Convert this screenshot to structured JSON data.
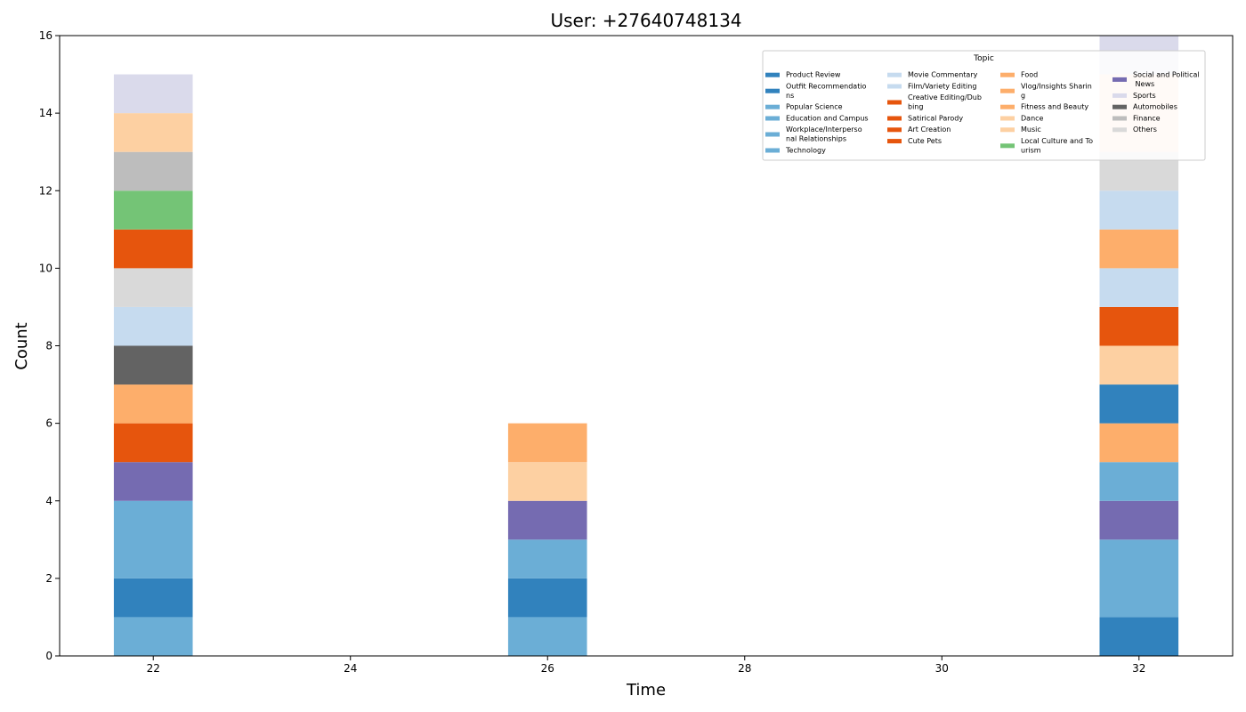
{
  "chart_data": {
    "type": "bar",
    "stacked": true,
    "title": "User: +27640748134",
    "xlabel": "Time",
    "ylabel": "Count",
    "xlim": [
      21.05,
      32.95
    ],
    "ylim": [
      0,
      16
    ],
    "x_ticks": [
      22,
      24,
      26,
      28,
      30,
      32
    ],
    "y_ticks": [
      0,
      2,
      4,
      6,
      8,
      10,
      12,
      14,
      16
    ],
    "bar_width": 0.8,
    "grid": false,
    "legend": {
      "title": "Topic",
      "placement": "top-right",
      "columns": 4,
      "entries": [
        {
          "label": "Product Review",
          "color": "#3182bd"
        },
        {
          "label": "Outfit Recommendatio\nns",
          "color": "#3182bd"
        },
        {
          "label": "Popular Science",
          "color": "#6baed6"
        },
        {
          "label": "Education and Campus",
          "color": "#6baed6"
        },
        {
          "label": "Workplace/Interperso\nnal Relationships",
          "color": "#6baed6"
        },
        {
          "label": "Technology",
          "color": "#6baed6"
        },
        {
          "label": "Movie Commentary",
          "color": "#c6dbef"
        },
        {
          "label": "Film/Variety Editing",
          "color": "#c6dbef"
        },
        {
          "label": "Creative Editing/Dub\nbing",
          "color": "#e6550d"
        },
        {
          "label": "Satirical Parody",
          "color": "#e6550d"
        },
        {
          "label": "Art Creation",
          "color": "#e6550d"
        },
        {
          "label": "Cute Pets",
          "color": "#e6550d"
        },
        {
          "label": "Food",
          "color": "#fdae6b"
        },
        {
          "label": "Vlog/Insights Sharin\ng",
          "color": "#fdae6b"
        },
        {
          "label": "Fitness and Beauty",
          "color": "#fdae6b"
        },
        {
          "label": "Dance",
          "color": "#fdd0a2"
        },
        {
          "label": "Music",
          "color": "#fdd0a2"
        },
        {
          "label": "Local Culture and To\nurism",
          "color": "#74c476"
        },
        {
          "label": "Social and Political\n News",
          "color": "#756bb1"
        },
        {
          "label": "Sports",
          "color": "#dadaeb"
        },
        {
          "label": "Automobiles",
          "color": "#636363"
        },
        {
          "label": "Finance",
          "color": "#bdbdbd"
        },
        {
          "label": "Others",
          "color": "#d9d9d9"
        }
      ]
    },
    "bars": [
      {
        "x": 22,
        "segments": [
          {
            "value": 1,
            "color": "#6baed6"
          },
          {
            "value": 1,
            "color": "#3182bd"
          },
          {
            "value": 2,
            "color": "#6baed6"
          },
          {
            "value": 1,
            "color": "#756bb1"
          },
          {
            "value": 1,
            "color": "#e6550d"
          },
          {
            "value": 1,
            "color": "#fdae6b"
          },
          {
            "value": 1,
            "color": "#636363"
          },
          {
            "value": 1,
            "color": "#c6dbef"
          },
          {
            "value": 1,
            "color": "#d9d9d9"
          },
          {
            "value": 1,
            "color": "#e6550d"
          },
          {
            "value": 1,
            "color": "#74c476"
          },
          {
            "value": 1,
            "color": "#bdbdbd"
          },
          {
            "value": 1,
            "color": "#fdd0a2"
          },
          {
            "value": 1,
            "color": "#dadaeb"
          }
        ]
      },
      {
        "x": 26,
        "segments": [
          {
            "value": 1,
            "color": "#6baed6"
          },
          {
            "value": 1,
            "color": "#3182bd"
          },
          {
            "value": 1,
            "color": "#6baed6"
          },
          {
            "value": 1,
            "color": "#756bb1"
          },
          {
            "value": 1,
            "color": "#fdd0a2"
          },
          {
            "value": 1,
            "color": "#fdae6b"
          }
        ]
      },
      {
        "x": 32,
        "segments": [
          {
            "value": 1,
            "color": "#3182bd"
          },
          {
            "value": 2,
            "color": "#6baed6"
          },
          {
            "value": 1,
            "color": "#756bb1"
          },
          {
            "value": 1,
            "color": "#6baed6"
          },
          {
            "value": 1,
            "color": "#fdae6b"
          },
          {
            "value": 1,
            "color": "#3182bd"
          },
          {
            "value": 1,
            "color": "#fdd0a2"
          },
          {
            "value": 1,
            "color": "#e6550d"
          },
          {
            "value": 1,
            "color": "#c6dbef"
          },
          {
            "value": 1,
            "color": "#fdae6b"
          },
          {
            "value": 1,
            "color": "#c6dbef"
          },
          {
            "value": 1,
            "color": "#d9d9d9"
          },
          {
            "value": 2,
            "color": "#fcdacb"
          },
          {
            "value": 1,
            "color": "#dadaeb"
          }
        ]
      }
    ]
  }
}
